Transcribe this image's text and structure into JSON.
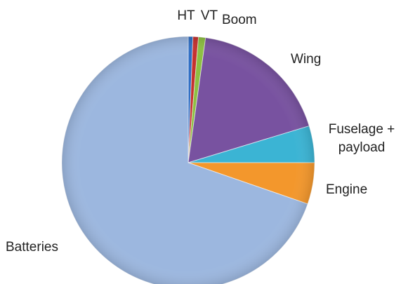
{
  "chart_data": {
    "type": "pie",
    "categories": [
      "HT",
      "VT",
      "Boom",
      "Wing",
      "Fuselage + payload",
      "Engine",
      "Batteries"
    ],
    "values": [
      0.6,
      0.7,
      0.9,
      18.1,
      4.7,
      5.3,
      69.7
    ],
    "colors": [
      "#2f6ec4",
      "#c6312f",
      "#8dbf42",
      "#7852a0",
      "#3bb4d4",
      "#f3972c",
      "#9cb7df"
    ]
  }
}
